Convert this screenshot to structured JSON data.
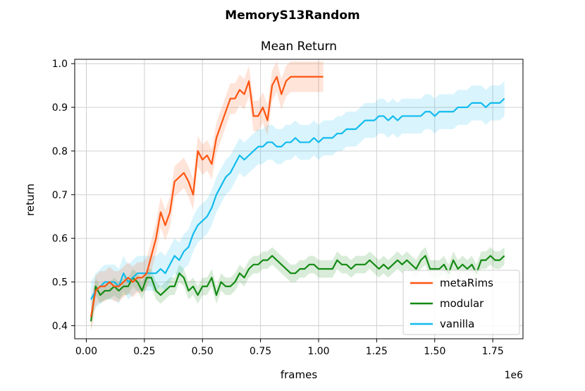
{
  "chart_data": {
    "type": "line",
    "suptitle": "MemoryS13Random",
    "title": "Mean Return",
    "xlabel": "frames",
    "ylabel": "return",
    "x_offset_label": "1e6",
    "xlim": [
      -0.05,
      1.88
    ],
    "ylim": [
      0.37,
      1.01
    ],
    "x_ticks": [
      0.0,
      0.25,
      0.5,
      0.75,
      1.0,
      1.25,
      1.5,
      1.75
    ],
    "x_tick_labels": [
      "0.00",
      "0.25",
      "0.50",
      "0.75",
      "1.00",
      "1.25",
      "1.50",
      "1.75"
    ],
    "y_ticks": [
      0.4,
      0.5,
      0.6,
      0.7,
      0.8,
      0.9,
      1.0
    ],
    "y_tick_labels": [
      "0.4",
      "0.5",
      "0.6",
      "0.7",
      "0.8",
      "0.9",
      "1.0"
    ],
    "grid": true,
    "legend_position": "lower-right",
    "series": [
      {
        "name": "metaRims",
        "color": "#ff5511",
        "x": [
          0.02,
          0.04,
          0.06,
          0.08,
          0.1,
          0.12,
          0.14,
          0.16,
          0.18,
          0.2,
          0.22,
          0.24,
          0.26,
          0.28,
          0.3,
          0.32,
          0.34,
          0.36,
          0.38,
          0.4,
          0.42,
          0.44,
          0.46,
          0.48,
          0.5,
          0.52,
          0.54,
          0.56,
          0.58,
          0.6,
          0.62,
          0.64,
          0.66,
          0.68,
          0.7,
          0.72,
          0.74,
          0.76,
          0.78,
          0.8,
          0.82,
          0.84,
          0.86,
          0.88,
          0.9,
          0.92,
          0.94,
          0.96,
          0.98,
          1.0,
          1.02
        ],
        "y": [
          0.42,
          0.48,
          0.49,
          0.49,
          0.5,
          0.49,
          0.49,
          0.5,
          0.51,
          0.5,
          0.51,
          0.51,
          0.52,
          0.56,
          0.6,
          0.66,
          0.63,
          0.66,
          0.73,
          0.74,
          0.75,
          0.73,
          0.7,
          0.8,
          0.78,
          0.79,
          0.77,
          0.83,
          0.86,
          0.89,
          0.92,
          0.92,
          0.94,
          0.93,
          0.96,
          0.88,
          0.88,
          0.9,
          0.87,
          0.95,
          0.97,
          0.93,
          0.96,
          0.97,
          0.97,
          0.97,
          0.97,
          0.97,
          0.97,
          0.97,
          0.97
        ],
        "band": 0.035
      },
      {
        "name": "modular",
        "color": "#138a13",
        "x": [
          0.02,
          0.04,
          0.06,
          0.08,
          0.1,
          0.12,
          0.14,
          0.16,
          0.18,
          0.2,
          0.22,
          0.24,
          0.26,
          0.28,
          0.3,
          0.32,
          0.34,
          0.36,
          0.38,
          0.4,
          0.42,
          0.44,
          0.46,
          0.48,
          0.5,
          0.52,
          0.54,
          0.56,
          0.58,
          0.6,
          0.62,
          0.64,
          0.66,
          0.68,
          0.7,
          0.72,
          0.74,
          0.76,
          0.78,
          0.8,
          0.82,
          0.84,
          0.86,
          0.88,
          0.9,
          0.92,
          0.94,
          0.96,
          0.98,
          1.0,
          1.02,
          1.04,
          1.06,
          1.08,
          1.1,
          1.12,
          1.14,
          1.16,
          1.18,
          1.2,
          1.22,
          1.24,
          1.26,
          1.28,
          1.3,
          1.32,
          1.34,
          1.36,
          1.38,
          1.4,
          1.42,
          1.44,
          1.46,
          1.48,
          1.5,
          1.52,
          1.54,
          1.56,
          1.58,
          1.6,
          1.62,
          1.64,
          1.66,
          1.68,
          1.7,
          1.72,
          1.74,
          1.76,
          1.78,
          1.8
        ],
        "y": [
          0.41,
          0.49,
          0.47,
          0.48,
          0.48,
          0.49,
          0.48,
          0.49,
          0.49,
          0.51,
          0.5,
          0.48,
          0.51,
          0.51,
          0.48,
          0.47,
          0.48,
          0.49,
          0.49,
          0.52,
          0.51,
          0.48,
          0.49,
          0.47,
          0.49,
          0.49,
          0.51,
          0.47,
          0.5,
          0.49,
          0.49,
          0.5,
          0.52,
          0.51,
          0.53,
          0.54,
          0.54,
          0.55,
          0.55,
          0.56,
          0.55,
          0.54,
          0.53,
          0.52,
          0.52,
          0.53,
          0.53,
          0.54,
          0.54,
          0.53,
          0.53,
          0.53,
          0.53,
          0.55,
          0.54,
          0.54,
          0.53,
          0.54,
          0.54,
          0.54,
          0.55,
          0.54,
          0.53,
          0.54,
          0.53,
          0.54,
          0.55,
          0.54,
          0.55,
          0.54,
          0.53,
          0.55,
          0.56,
          0.53,
          0.53,
          0.53,
          0.54,
          0.52,
          0.55,
          0.53,
          0.54,
          0.53,
          0.54,
          0.52,
          0.55,
          0.55,
          0.56,
          0.55,
          0.55,
          0.56
        ],
        "band": 0.02
      },
      {
        "name": "vanilla",
        "color": "#11bbee",
        "x": [
          0.02,
          0.04,
          0.06,
          0.08,
          0.1,
          0.12,
          0.14,
          0.16,
          0.18,
          0.2,
          0.22,
          0.24,
          0.26,
          0.28,
          0.3,
          0.32,
          0.34,
          0.36,
          0.38,
          0.4,
          0.42,
          0.44,
          0.46,
          0.48,
          0.5,
          0.52,
          0.54,
          0.56,
          0.58,
          0.6,
          0.62,
          0.64,
          0.66,
          0.68,
          0.7,
          0.72,
          0.74,
          0.76,
          0.78,
          0.8,
          0.82,
          0.84,
          0.86,
          0.88,
          0.9,
          0.92,
          0.94,
          0.96,
          0.98,
          1.0,
          1.02,
          1.04,
          1.06,
          1.08,
          1.1,
          1.12,
          1.14,
          1.16,
          1.18,
          1.2,
          1.22,
          1.24,
          1.26,
          1.28,
          1.3,
          1.32,
          1.34,
          1.36,
          1.38,
          1.4,
          1.42,
          1.44,
          1.46,
          1.48,
          1.5,
          1.52,
          1.54,
          1.56,
          1.58,
          1.6,
          1.62,
          1.64,
          1.66,
          1.68,
          1.7,
          1.72,
          1.74,
          1.76,
          1.78,
          1.8
        ],
        "y": [
          0.46,
          0.48,
          0.49,
          0.5,
          0.5,
          0.5,
          0.49,
          0.52,
          0.5,
          0.51,
          0.52,
          0.52,
          0.52,
          0.52,
          0.52,
          0.53,
          0.52,
          0.54,
          0.56,
          0.55,
          0.57,
          0.58,
          0.61,
          0.63,
          0.64,
          0.65,
          0.67,
          0.7,
          0.72,
          0.74,
          0.75,
          0.77,
          0.79,
          0.78,
          0.79,
          0.8,
          0.81,
          0.81,
          0.82,
          0.82,
          0.81,
          0.81,
          0.82,
          0.82,
          0.83,
          0.82,
          0.82,
          0.82,
          0.83,
          0.82,
          0.83,
          0.83,
          0.83,
          0.84,
          0.84,
          0.85,
          0.85,
          0.85,
          0.86,
          0.87,
          0.87,
          0.87,
          0.88,
          0.88,
          0.87,
          0.88,
          0.87,
          0.88,
          0.88,
          0.88,
          0.88,
          0.88,
          0.89,
          0.89,
          0.88,
          0.89,
          0.89,
          0.89,
          0.89,
          0.9,
          0.9,
          0.9,
          0.91,
          0.91,
          0.91,
          0.9,
          0.91,
          0.91,
          0.91,
          0.92
        ],
        "band": 0.04
      }
    ]
  }
}
